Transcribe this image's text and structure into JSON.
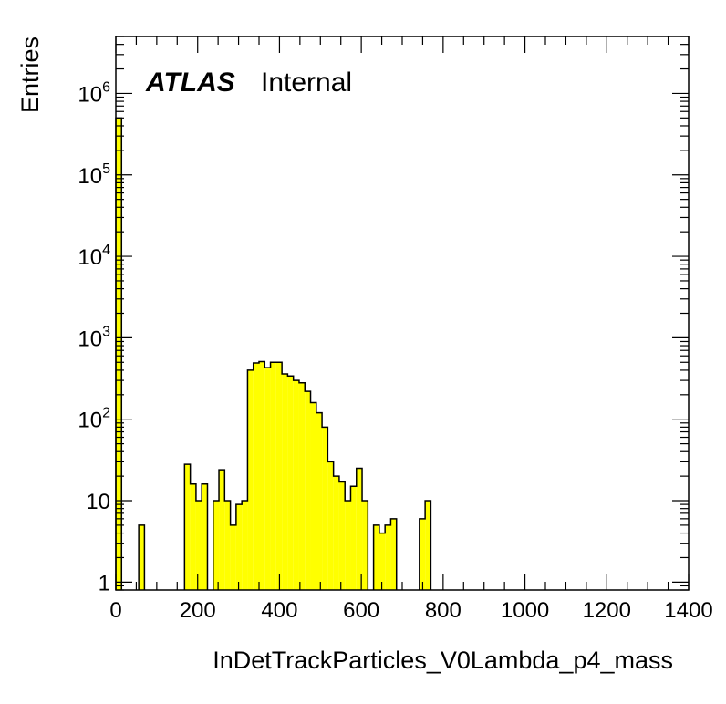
{
  "chart_data": {
    "type": "bar",
    "xlabel": "InDetTrackParticles_V0Lambda_p4_mass",
    "ylabel": "Entries",
    "x_tick_labels": [
      "0",
      "200",
      "400",
      "600",
      "800",
      "1000",
      "1200",
      "1400"
    ],
    "y_tick_labels": [
      {
        "base": "1",
        "exp": ""
      },
      {
        "base": "10",
        "exp": ""
      },
      {
        "base": "10",
        "exp": "2"
      },
      {
        "base": "10",
        "exp": "3"
      },
      {
        "base": "10",
        "exp": "4"
      },
      {
        "base": "10",
        "exp": "5"
      },
      {
        "base": "10",
        "exp": "6"
      }
    ],
    "xlim": [
      0,
      1400
    ],
    "ylim": [
      0.8,
      5000000
    ],
    "y_scale": "log",
    "bin_width": 14,
    "fill_color": "#ffff00",
    "line_color": "#000000",
    "bins": [
      {
        "x": 0,
        "y": 500000
      },
      {
        "x": 56,
        "y": 5
      },
      {
        "x": 168,
        "y": 28
      },
      {
        "x": 182,
        "y": 16
      },
      {
        "x": 196,
        "y": 10
      },
      {
        "x": 210,
        "y": 16
      },
      {
        "x": 238,
        "y": 10
      },
      {
        "x": 252,
        "y": 24
      },
      {
        "x": 266,
        "y": 10
      },
      {
        "x": 280,
        "y": 5
      },
      {
        "x": 294,
        "y": 9
      },
      {
        "x": 308,
        "y": 10
      },
      {
        "x": 322,
        "y": 400
      },
      {
        "x": 336,
        "y": 490
      },
      {
        "x": 350,
        "y": 510
      },
      {
        "x": 364,
        "y": 430
      },
      {
        "x": 378,
        "y": 500
      },
      {
        "x": 392,
        "y": 500
      },
      {
        "x": 406,
        "y": 360
      },
      {
        "x": 420,
        "y": 340
      },
      {
        "x": 434,
        "y": 300
      },
      {
        "x": 448,
        "y": 280
      },
      {
        "x": 462,
        "y": 220
      },
      {
        "x": 476,
        "y": 160
      },
      {
        "x": 490,
        "y": 120
      },
      {
        "x": 504,
        "y": 80
      },
      {
        "x": 518,
        "y": 30
      },
      {
        "x": 532,
        "y": 20
      },
      {
        "x": 546,
        "y": 17
      },
      {
        "x": 560,
        "y": 10
      },
      {
        "x": 574,
        "y": 15
      },
      {
        "x": 588,
        "y": 25
      },
      {
        "x": 602,
        "y": 10
      },
      {
        "x": 630,
        "y": 5
      },
      {
        "x": 644,
        "y": 4
      },
      {
        "x": 658,
        "y": 5
      },
      {
        "x": 672,
        "y": 6
      },
      {
        "x": 742,
        "y": 6
      },
      {
        "x": 756,
        "y": 10
      }
    ]
  },
  "labels": {
    "atlas": "ATLAS",
    "internal": "Internal"
  }
}
